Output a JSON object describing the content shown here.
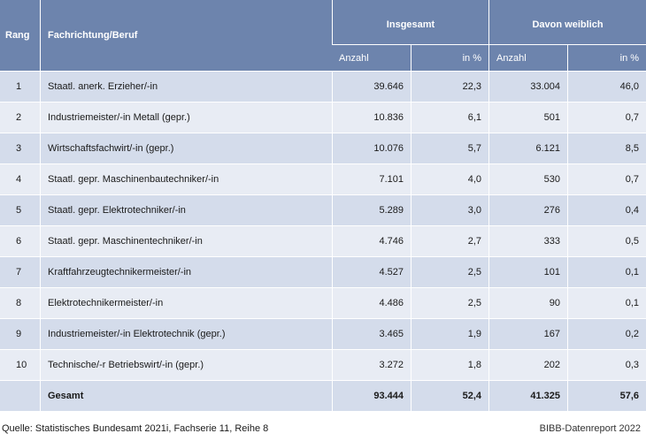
{
  "header": {
    "rank": "Rang",
    "field": "Fachrichtung/Beruf",
    "group_total": "Insgesamt",
    "group_female": "Davon weiblich",
    "sub_count": "Anzahl",
    "sub_percent": "in %"
  },
  "rows": [
    {
      "rank": "1",
      "name": "Staatl. anerk. Erzieher/-in",
      "total_count": "39.646",
      "total_pct": "22,3",
      "female_count": "33.004",
      "female_pct": "46,0"
    },
    {
      "rank": "2",
      "name": "Industriemeister/-in Metall (gepr.)",
      "total_count": "10.836",
      "total_pct": "6,1",
      "female_count": "501",
      "female_pct": "0,7"
    },
    {
      "rank": "3",
      "name": "Wirtschaftsfachwirt/-in (gepr.)",
      "total_count": "10.076",
      "total_pct": "5,7",
      "female_count": "6.121",
      "female_pct": "8,5"
    },
    {
      "rank": "4",
      "name": "Staatl. gepr. Maschinenbautechniker/-in",
      "total_count": "7.101",
      "total_pct": "4,0",
      "female_count": "530",
      "female_pct": "0,7"
    },
    {
      "rank": "5",
      "name": "Staatl. gepr. Elektrotechniker/-in",
      "total_count": "5.289",
      "total_pct": "3,0",
      "female_count": "276",
      "female_pct": "0,4"
    },
    {
      "rank": "6",
      "name": "Staatl. gepr. Maschinentechniker/-in",
      "total_count": "4.746",
      "total_pct": "2,7",
      "female_count": "333",
      "female_pct": "0,5"
    },
    {
      "rank": "7",
      "name": "Kraftfahrzeugtechnikermeister/-in",
      "total_count": "4.527",
      "total_pct": "2,5",
      "female_count": "101",
      "female_pct": "0,1"
    },
    {
      "rank": "8",
      "name": "Elektrotechnikermeister/-in",
      "total_count": "4.486",
      "total_pct": "2,5",
      "female_count": "90",
      "female_pct": "0,1"
    },
    {
      "rank": "9",
      "name": "Industriemeister/-in Elektrotechnik (gepr.)",
      "total_count": "3.465",
      "total_pct": "1,9",
      "female_count": "167",
      "female_pct": "0,2"
    },
    {
      "rank": "10",
      "name": "Technische/-r Betriebswirt/-in (gepr.)",
      "total_count": "3.272",
      "total_pct": "1,8",
      "female_count": "202",
      "female_pct": "0,3"
    }
  ],
  "total": {
    "label": "Gesamt",
    "total_count": "93.444",
    "total_pct": "52,4",
    "female_count": "41.325",
    "female_pct": "57,6"
  },
  "footer": {
    "source": "Quelle: Statistisches Bundesamt 2021i, Fachserie 11, Reihe 8",
    "brand": "BIBB-Datenreport 2022"
  }
}
